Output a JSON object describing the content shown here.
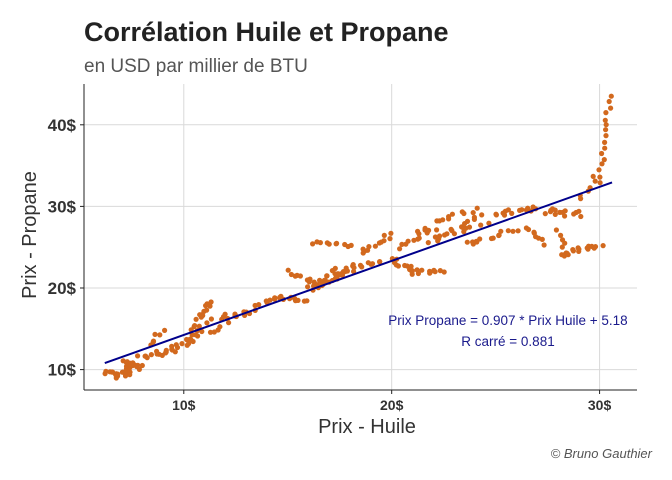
{
  "chart_data": {
    "type": "scatter",
    "title": "Corrélation Huile et Propane",
    "subtitle": "en USD par millier de BTU",
    "xlabel": "Prix - Huile",
    "ylabel": "Prix - Propane",
    "xlim": [
      5.2,
      31.8
    ],
    "ylim": [
      7.5,
      45.0
    ],
    "x_ticks": [
      10,
      20,
      30
    ],
    "x_tick_labels": [
      "10$",
      "20$",
      "30$"
    ],
    "y_ticks": [
      10,
      20,
      30,
      40
    ],
    "y_tick_labels": [
      "10$",
      "20$",
      "30$",
      "40$"
    ],
    "grid": true,
    "legend": "none",
    "point_color": "#d2691e",
    "line_color": "#00008b",
    "regression": {
      "slope": 0.907,
      "intercept": 5.18,
      "x_range": [
        6.2,
        30.6
      ]
    },
    "annotations": [
      "Prix Propane = 0.907 * Prix Huile + 5.18",
      "R carré = 0.881"
    ],
    "caption": "© Bruno Gauthier",
    "clusters": [
      {
        "x0": 6.2,
        "y0": 9.6,
        "x1": 7.4,
        "y1": 9.4,
        "n": 14,
        "jitter": 0.35,
        "seed": 1
      },
      {
        "x0": 6.8,
        "y0": 9.2,
        "x1": 7.6,
        "y1": 10.8,
        "n": 12,
        "jitter": 0.4,
        "seed": 2
      },
      {
        "x0": 7.2,
        "y0": 10.8,
        "x1": 8.0,
        "y1": 10.2,
        "n": 10,
        "jitter": 0.4,
        "seed": 3
      },
      {
        "x0": 8.0,
        "y0": 11.5,
        "x1": 9.5,
        "y1": 12.5,
        "n": 14,
        "jitter": 0.5,
        "seed": 4
      },
      {
        "x0": 8.3,
        "y0": 13.0,
        "x1": 9.0,
        "y1": 14.8,
        "n": 6,
        "jitter": 0.3,
        "seed": 5
      },
      {
        "x0": 9.5,
        "y0": 12.3,
        "x1": 10.5,
        "y1": 14.0,
        "n": 10,
        "jitter": 0.4,
        "seed": 6
      },
      {
        "x0": 10.2,
        "y0": 13.5,
        "x1": 11.0,
        "y1": 16.5,
        "n": 14,
        "jitter": 0.5,
        "seed": 7
      },
      {
        "x0": 10.8,
        "y0": 16.5,
        "x1": 11.3,
        "y1": 18.5,
        "n": 8,
        "jitter": 0.35,
        "seed": 8
      },
      {
        "x0": 11.0,
        "y0": 14.5,
        "x1": 12.0,
        "y1": 15.5,
        "n": 6,
        "jitter": 0.5,
        "seed": 9
      },
      {
        "x0": 11.5,
        "y0": 16.2,
        "x1": 13.0,
        "y1": 17.0,
        "n": 10,
        "jitter": 0.4,
        "seed": 10
      },
      {
        "x0": 13.0,
        "y0": 17.0,
        "x1": 14.5,
        "y1": 19.0,
        "n": 10,
        "jitter": 0.4,
        "seed": 11
      },
      {
        "x0": 14.3,
        "y0": 19.0,
        "x1": 15.8,
        "y1": 18.3,
        "n": 12,
        "jitter": 0.3,
        "seed": 12
      },
      {
        "x0": 15.0,
        "y0": 22.0,
        "x1": 16.5,
        "y1": 20.5,
        "n": 10,
        "jitter": 0.3,
        "seed": 13
      },
      {
        "x0": 16.0,
        "y0": 20.0,
        "x1": 17.5,
        "y1": 21.5,
        "n": 18,
        "jitter": 0.5,
        "seed": 14
      },
      {
        "x0": 17.0,
        "y0": 21.5,
        "x1": 18.0,
        "y1": 22.5,
        "n": 16,
        "jitter": 0.5,
        "seed": 15
      },
      {
        "x0": 16.3,
        "y0": 25.5,
        "x1": 18.0,
        "y1": 25.2,
        "n": 10,
        "jitter": 0.25,
        "seed": 16
      },
      {
        "x0": 18.0,
        "y0": 22.3,
        "x1": 19.5,
        "y1": 23.5,
        "n": 10,
        "jitter": 0.4,
        "seed": 17
      },
      {
        "x0": 18.5,
        "y0": 24.0,
        "x1": 20.0,
        "y1": 26.5,
        "n": 12,
        "jitter": 0.5,
        "seed": 18
      },
      {
        "x0": 20.0,
        "y0": 23.5,
        "x1": 21.0,
        "y1": 22.0,
        "n": 10,
        "jitter": 0.4,
        "seed": 19
      },
      {
        "x0": 21.0,
        "y0": 22.0,
        "x1": 22.5,
        "y1": 22.0,
        "n": 12,
        "jitter": 0.3,
        "seed": 20
      },
      {
        "x0": 20.5,
        "y0": 25.0,
        "x1": 22.0,
        "y1": 27.5,
        "n": 14,
        "jitter": 0.5,
        "seed": 21
      },
      {
        "x0": 22.0,
        "y0": 26.0,
        "x1": 24.5,
        "y1": 28.5,
        "n": 22,
        "jitter": 0.6,
        "seed": 22
      },
      {
        "x0": 22.0,
        "y0": 28.0,
        "x1": 24.0,
        "y1": 29.5,
        "n": 10,
        "jitter": 0.4,
        "seed": 23
      },
      {
        "x0": 23.5,
        "y0": 25.5,
        "x1": 26.0,
        "y1": 27.0,
        "n": 14,
        "jitter": 0.5,
        "seed": 24
      },
      {
        "x0": 25.0,
        "y0": 29.0,
        "x1": 27.0,
        "y1": 29.8,
        "n": 14,
        "jitter": 0.35,
        "seed": 25
      },
      {
        "x0": 26.5,
        "y0": 27.5,
        "x1": 27.5,
        "y1": 25.5,
        "n": 8,
        "jitter": 0.35,
        "seed": 26
      },
      {
        "x0": 27.5,
        "y0": 29.5,
        "x1": 29.0,
        "y1": 29.0,
        "n": 14,
        "jitter": 0.5,
        "seed": 27
      },
      {
        "x0": 28.0,
        "y0": 27.0,
        "x1": 28.3,
        "y1": 25.0,
        "n": 5,
        "jitter": 0.2,
        "seed": 28
      },
      {
        "x0": 28.0,
        "y0": 24.0,
        "x1": 30.0,
        "y1": 25.3,
        "n": 18,
        "jitter": 0.4,
        "seed": 29
      },
      {
        "x0": 29.0,
        "y0": 31.0,
        "x1": 29.8,
        "y1": 33.5,
        "n": 6,
        "jitter": 0.3,
        "seed": 30
      },
      {
        "x0": 30.0,
        "y0": 33.0,
        "x1": 30.5,
        "y1": 43.5,
        "n": 16,
        "jitter": 0.2,
        "seed": 31
      }
    ]
  }
}
